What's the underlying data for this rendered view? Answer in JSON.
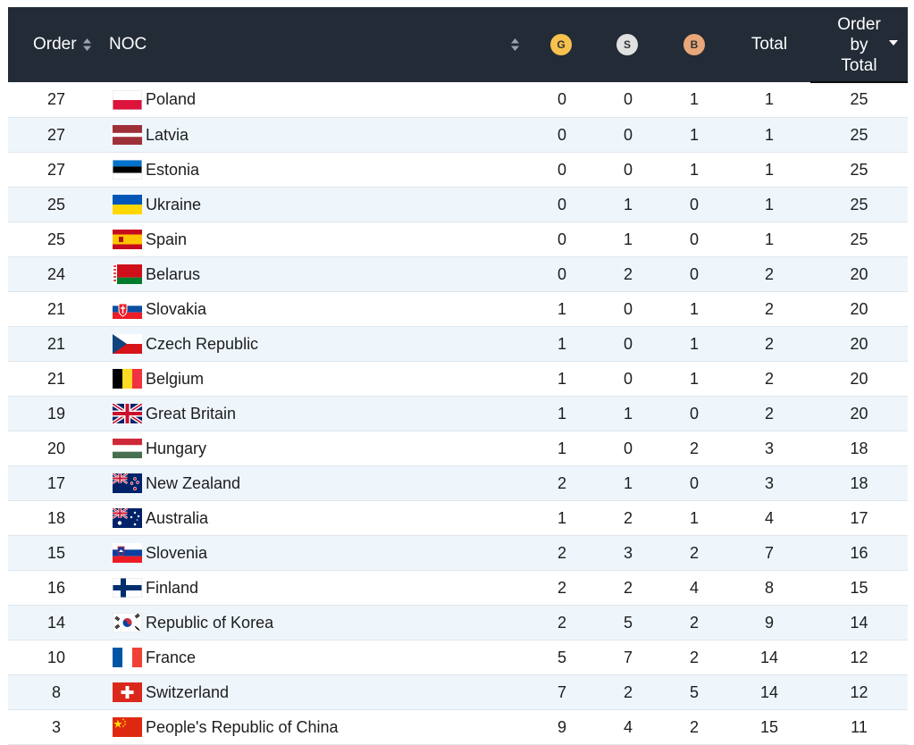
{
  "header": {
    "order_label": "Order",
    "noc_label": "NOC",
    "gold_label": "G",
    "silver_label": "S",
    "bronze_label": "B",
    "total_label": "Total",
    "order_by_total_lines": [
      "Order",
      "by",
      "Total"
    ]
  },
  "colors": {
    "header_bg": "#222b36",
    "gold": "#f6c24d",
    "silver": "#e1e1e1",
    "bronze": "#e9a77a",
    "row_alt": "#eef6fc"
  },
  "rows": [
    {
      "order": "27",
      "noc": "Poland",
      "flag": "poland-flag-icon",
      "g": "0",
      "s": "0",
      "b": "1",
      "total": "1",
      "order_total": "25"
    },
    {
      "order": "27",
      "noc": "Latvia",
      "flag": "latvia-flag-icon",
      "g": "0",
      "s": "0",
      "b": "1",
      "total": "1",
      "order_total": "25"
    },
    {
      "order": "27",
      "noc": "Estonia",
      "flag": "estonia-flag-icon",
      "g": "0",
      "s": "0",
      "b": "1",
      "total": "1",
      "order_total": "25"
    },
    {
      "order": "25",
      "noc": "Ukraine",
      "flag": "ukraine-flag-icon",
      "g": "0",
      "s": "1",
      "b": "0",
      "total": "1",
      "order_total": "25"
    },
    {
      "order": "25",
      "noc": "Spain",
      "flag": "spain-flag-icon",
      "g": "0",
      "s": "1",
      "b": "0",
      "total": "1",
      "order_total": "25"
    },
    {
      "order": "24",
      "noc": "Belarus",
      "flag": "belarus-flag-icon",
      "g": "0",
      "s": "2",
      "b": "0",
      "total": "2",
      "order_total": "20"
    },
    {
      "order": "21",
      "noc": "Slovakia",
      "flag": "slovakia-flag-icon",
      "g": "1",
      "s": "0",
      "b": "1",
      "total": "2",
      "order_total": "20"
    },
    {
      "order": "21",
      "noc": "Czech Republic",
      "flag": "czech-flag-icon",
      "g": "1",
      "s": "0",
      "b": "1",
      "total": "2",
      "order_total": "20"
    },
    {
      "order": "21",
      "noc": "Belgium",
      "flag": "belgium-flag-icon",
      "g": "1",
      "s": "0",
      "b": "1",
      "total": "2",
      "order_total": "20"
    },
    {
      "order": "19",
      "noc": "Great Britain",
      "flag": "great-britain-flag-icon",
      "g": "1",
      "s": "1",
      "b": "0",
      "total": "2",
      "order_total": "20"
    },
    {
      "order": "20",
      "noc": "Hungary",
      "flag": "hungary-flag-icon",
      "g": "1",
      "s": "0",
      "b": "2",
      "total": "3",
      "order_total": "18"
    },
    {
      "order": "17",
      "noc": "New Zealand",
      "flag": "new-zealand-flag-icon",
      "g": "2",
      "s": "1",
      "b": "0",
      "total": "3",
      "order_total": "18"
    },
    {
      "order": "18",
      "noc": "Australia",
      "flag": "australia-flag-icon",
      "g": "1",
      "s": "2",
      "b": "1",
      "total": "4",
      "order_total": "17"
    },
    {
      "order": "15",
      "noc": "Slovenia",
      "flag": "slovenia-flag-icon",
      "g": "2",
      "s": "3",
      "b": "2",
      "total": "7",
      "order_total": "16"
    },
    {
      "order": "16",
      "noc": "Finland",
      "flag": "finland-flag-icon",
      "g": "2",
      "s": "2",
      "b": "4",
      "total": "8",
      "order_total": "15"
    },
    {
      "order": "14",
      "noc": "Republic of Korea",
      "flag": "korea-flag-icon",
      "g": "2",
      "s": "5",
      "b": "2",
      "total": "9",
      "order_total": "14"
    },
    {
      "order": "10",
      "noc": "France",
      "flag": "france-flag-icon",
      "g": "5",
      "s": "7",
      "b": "2",
      "total": "14",
      "order_total": "12"
    },
    {
      "order": "8",
      "noc": "Switzerland",
      "flag": "switzerland-flag-icon",
      "g": "7",
      "s": "2",
      "b": "5",
      "total": "14",
      "order_total": "12"
    },
    {
      "order": "3",
      "noc": "People's Republic of China",
      "flag": "china-flag-icon",
      "g": "9",
      "s": "4",
      "b": "2",
      "total": "15",
      "order_total": "11"
    }
  ]
}
